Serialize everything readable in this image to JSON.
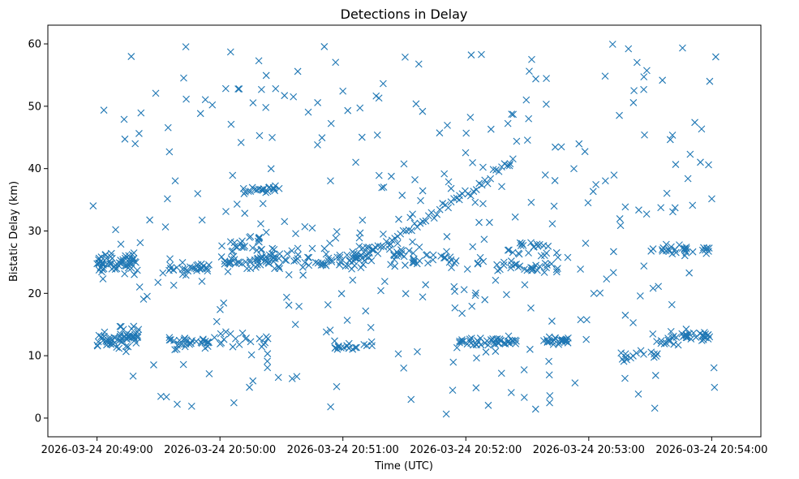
{
  "chart_data": {
    "type": "scatter",
    "title": "Detections in Delay",
    "xlabel": "Time (UTC)",
    "ylabel": "Bistatic Delay (km)",
    "marker": "x",
    "color": "#1f77b4",
    "grid": false,
    "x_unit": "seconds after 2026-03-24 20:49:00",
    "xlim": [
      -24,
      324
    ],
    "ylim": [
      -3,
      63
    ],
    "x_ticks": [
      {
        "value": 0,
        "label": "2026-03-24 20:49:00"
      },
      {
        "value": 60,
        "label": "2026-03-24 20:50:00"
      },
      {
        "value": 120,
        "label": "2026-03-24 20:51:00"
      },
      {
        "value": 180,
        "label": "2026-03-24 20:52:00"
      },
      {
        "value": 240,
        "label": "2026-03-24 20:53:00"
      },
      {
        "value": 300,
        "label": "2026-03-24 20:54:00"
      }
    ],
    "y_ticks": [
      {
        "value": 0,
        "label": "0"
      },
      {
        "value": 10,
        "label": "10"
      },
      {
        "value": 20,
        "label": "20"
      },
      {
        "value": 30,
        "label": "30"
      },
      {
        "value": 40,
        "label": "40"
      },
      {
        "value": 50,
        "label": "50"
      },
      {
        "value": 60,
        "label": "60"
      }
    ],
    "series_description": "Dense horizontal tracks near 12-13 km and 24-27 km, a rising track from ~25 km at 20:51:00 to ~41 km at 20:52:40, plus uniformly scattered clutter between 0 and 60 km.",
    "clusters": [
      {
        "t0": 0,
        "t1": 20,
        "y": 13.0,
        "spread": 0.4,
        "count": 30
      },
      {
        "t0": 0,
        "t1": 15,
        "y": 12.0,
        "spread": 0.5,
        "count": 20
      },
      {
        "t0": 0,
        "t1": 20,
        "y": 24.5,
        "spread": 0.6,
        "count": 35
      },
      {
        "t0": 0,
        "t1": 18,
        "y": 25.5,
        "spread": 0.6,
        "count": 25
      },
      {
        "t0": 10,
        "t1": 20,
        "y": 14.0,
        "spread": 0.6,
        "count": 12
      },
      {
        "t0": 35,
        "t1": 55,
        "y": 12.0,
        "spread": 0.4,
        "count": 30
      },
      {
        "t0": 35,
        "t1": 55,
        "y": 24.0,
        "spread": 0.6,
        "count": 30
      },
      {
        "t0": 60,
        "t1": 80,
        "y": 28.0,
        "spread": 1.0,
        "count": 20
      },
      {
        "t0": 60,
        "t1": 90,
        "y": 25.0,
        "spread": 0.8,
        "count": 35
      },
      {
        "t0": 70,
        "t1": 90,
        "y": 36.5,
        "spread": 0.3,
        "count": 20
      },
      {
        "t0": 78,
        "t1": 100,
        "y": 26.0,
        "spread": 0.6,
        "count": 25
      },
      {
        "t0": 60,
        "t1": 85,
        "y": 12.5,
        "spread": 0.8,
        "count": 20
      },
      {
        "t0": 100,
        "t1": 130,
        "y": 25.0,
        "spread": 0.8,
        "count": 35
      },
      {
        "t0": 115,
        "t1": 135,
        "y": 11.5,
        "spread": 0.3,
        "count": 18
      },
      {
        "t0": 125,
        "t1": 150,
        "y": 26.5,
        "spread": 0.8,
        "count": 30
      },
      {
        "t0": 150,
        "t1": 190,
        "y": 25.5,
        "spread": 0.6,
        "count": 30
      },
      {
        "t0": 175,
        "t1": 205,
        "y": 12.2,
        "spread": 0.4,
        "count": 45
      },
      {
        "t0": 195,
        "t1": 225,
        "y": 24.2,
        "spread": 0.5,
        "count": 30
      },
      {
        "t0": 200,
        "t1": 225,
        "y": 27.0,
        "spread": 0.5,
        "count": 20
      },
      {
        "t0": 215,
        "t1": 230,
        "y": 12.4,
        "spread": 0.3,
        "count": 25
      },
      {
        "t0": 252,
        "t1": 275,
        "y": 10.0,
        "spread": 0.4,
        "count": 15
      },
      {
        "t0": 270,
        "t1": 300,
        "y": 27.0,
        "spread": 0.4,
        "count": 30
      },
      {
        "t0": 280,
        "t1": 300,
        "y": 13.2,
        "spread": 0.4,
        "count": 30
      },
      {
        "t0": 270,
        "t1": 285,
        "y": 12.5,
        "spread": 0.3,
        "count": 12
      }
    ],
    "rising_track": {
      "t0": 122,
      "t1": 203,
      "y0": 25.5,
      "y1": 41.5,
      "count": 60,
      "spread": 0.4
    },
    "clutter": {
      "t0": -2,
      "t1": 302,
      "y0": 0.5,
      "y1": 60,
      "count": 320
    }
  }
}
